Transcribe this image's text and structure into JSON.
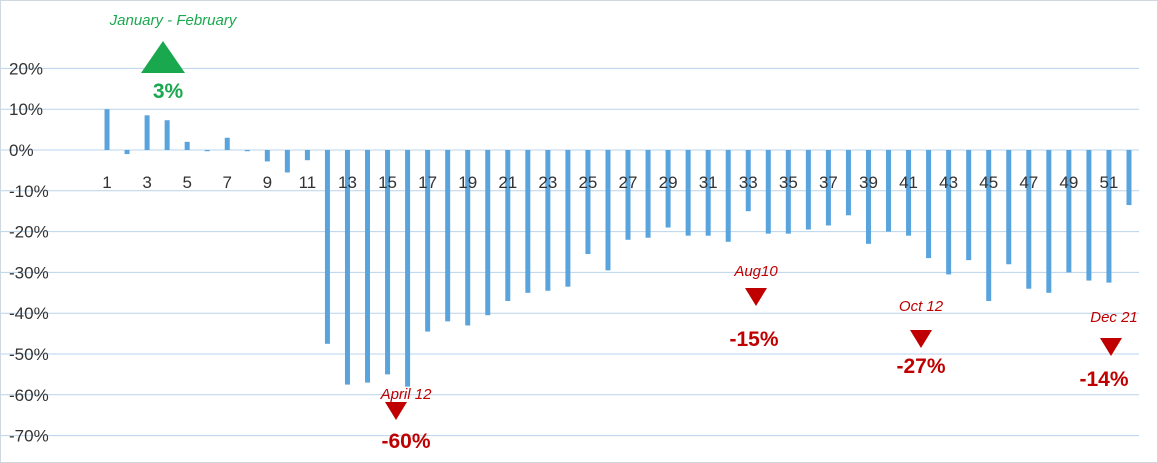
{
  "chart_data": {
    "type": "bar",
    "title": "",
    "xlabel": "",
    "ylabel": "",
    "ylim": [
      -70,
      20
    ],
    "yticks": [
      "20%",
      "10%",
      "0%",
      "-10%",
      "-20%",
      "-30%",
      "-40%",
      "-50%",
      "-60%",
      "-70%"
    ],
    "ytick_values": [
      20,
      10,
      0,
      -10,
      -20,
      -30,
      -40,
      -50,
      -60,
      -70
    ],
    "xticks": [
      "1",
      "3",
      "5",
      "7",
      "9",
      "11",
      "13",
      "15",
      "17",
      "19",
      "21",
      "23",
      "25",
      "27",
      "29",
      "31",
      "33",
      "35",
      "37",
      "39",
      "41",
      "43",
      "45",
      "47",
      "49",
      "51"
    ],
    "xtick_values": [
      1,
      3,
      5,
      7,
      9,
      11,
      13,
      15,
      17,
      19,
      21,
      23,
      25,
      27,
      29,
      31,
      33,
      35,
      37,
      39,
      41,
      43,
      45,
      47,
      49,
      51
    ],
    "grid": true,
    "bar_color": "#5aa4de",
    "x": [
      1,
      2,
      3,
      4,
      5,
      6,
      7,
      8,
      9,
      10,
      11,
      12,
      13,
      14,
      15,
      16,
      17,
      18,
      19,
      20,
      21,
      22,
      23,
      24,
      25,
      26,
      27,
      28,
      29,
      30,
      31,
      32,
      33,
      34,
      35,
      36,
      37,
      38,
      39,
      40,
      41,
      42,
      43,
      44,
      45,
      46,
      47,
      48,
      49,
      50,
      51,
      52
    ],
    "values": [
      10,
      -1,
      8.5,
      7.3,
      2,
      -0.3,
      3,
      -0.3,
      -2.8,
      -5.5,
      -2.5,
      -47.5,
      -57.5,
      -57,
      -55,
      -58,
      -44.5,
      -42,
      -43,
      -40.5,
      -37,
      -35,
      -34.5,
      -33.5,
      -25.5,
      -29.5,
      -22,
      -21.5,
      -19,
      -21,
      -21,
      -22.5,
      -15,
      -20.5,
      -20.5,
      -19.5,
      -18.5,
      -16,
      -23,
      -20,
      -21,
      -26.5,
      -30.5,
      -27,
      -37,
      -28,
      -34,
      -35,
      -30,
      -32,
      -32.5,
      -13.5
    ],
    "annotations": [
      {
        "label": "January - February",
        "value": "3%",
        "direction": "up",
        "color": "#1aa84f"
      },
      {
        "label": "April 12",
        "value": "-60%",
        "direction": "down",
        "color": "#c00000"
      },
      {
        "label": "Aug10",
        "value": "-15%",
        "direction": "down",
        "color": "#c00000"
      },
      {
        "label": "Oct 12",
        "value": "-27%",
        "direction": "down",
        "color": "#c00000"
      },
      {
        "label": "Dec 21",
        "value": "-14%",
        "direction": "down",
        "color": "#c00000"
      }
    ]
  }
}
